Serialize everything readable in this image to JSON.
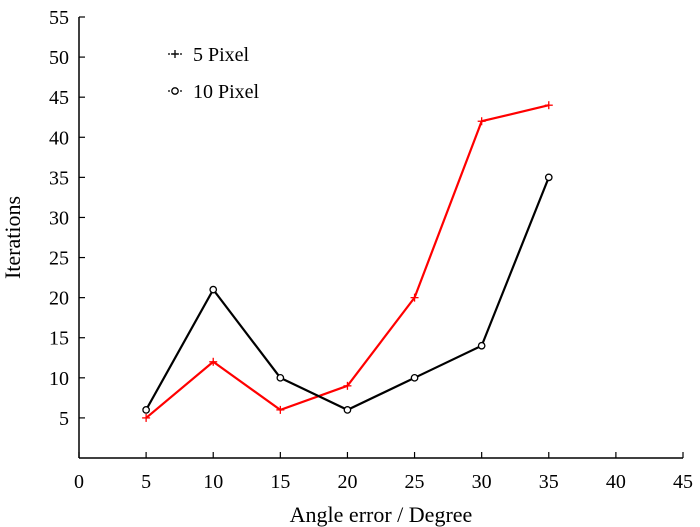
{
  "chart_data": {
    "type": "line",
    "title": "",
    "xlabel": "Angle error / Degree",
    "ylabel": "Iterations",
    "xlim": [
      0,
      45
    ],
    "ylim": [
      0,
      55
    ],
    "xticks": [
      0,
      5,
      10,
      15,
      20,
      25,
      30,
      35,
      40,
      45
    ],
    "yticks": [
      5,
      10,
      15,
      20,
      25,
      30,
      35,
      40,
      45,
      50,
      55
    ],
    "grid": false,
    "legend_position": "top-left",
    "series": [
      {
        "name": "5 Pixel",
        "color": "#ff0000",
        "marker": "plus",
        "x": [
          5,
          10,
          15,
          20,
          25,
          30,
          35
        ],
        "y": [
          5,
          12,
          6,
          9,
          20,
          42,
          44
        ]
      },
      {
        "name": "10 Pixel",
        "color": "#000000",
        "marker": "circle",
        "x": [
          5,
          10,
          15,
          20,
          25,
          30,
          35
        ],
        "y": [
          6,
          21,
          10,
          6,
          10,
          14,
          35
        ]
      }
    ]
  }
}
